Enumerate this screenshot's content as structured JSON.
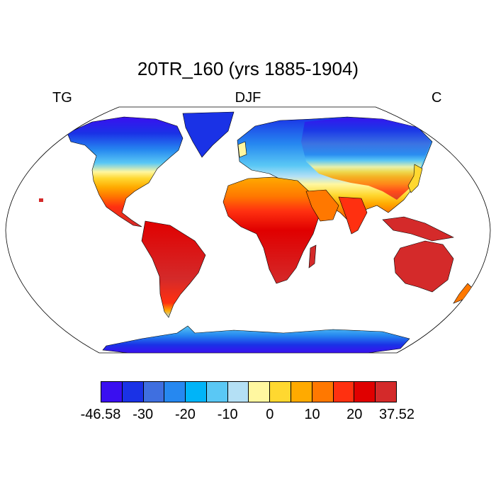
{
  "title": "20TR_160 (yrs 1885-1904)",
  "left_label": "TG",
  "center_label": "DJF",
  "right_label": "C",
  "colorbar": {
    "colors": [
      "#3a0ff0",
      "#1a32e6",
      "#3f6fe0",
      "#2688f0",
      "#00b4f8",
      "#5ac8f5",
      "#b4e0f5",
      "#fff7a0",
      "#ffd830",
      "#ffaa00",
      "#ff7800",
      "#ff3010",
      "#e00000",
      "#d42a2a"
    ],
    "ticks": [
      "-46.58",
      "-30",
      "-20",
      "-10",
      "0",
      "10",
      "20",
      "37.52"
    ]
  },
  "map": {
    "projection": "Robinson",
    "ocean_color": "#ffffff",
    "coastline_color": "#000000"
  }
}
